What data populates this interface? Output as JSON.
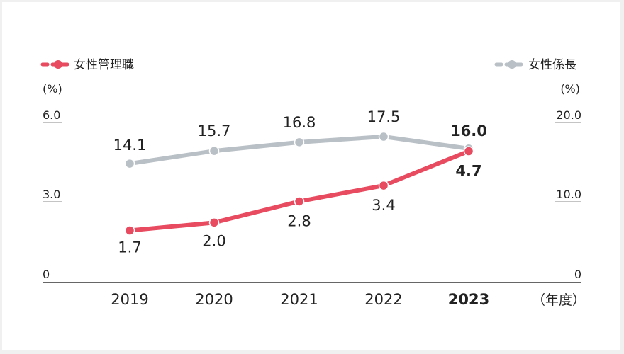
{
  "chart_data": {
    "type": "line",
    "categories": [
      "2019",
      "2020",
      "2021",
      "2022",
      "2023"
    ],
    "x_unit_label": "（年度）",
    "highlight_category": "2023",
    "left_axis": {
      "unit": "(%)",
      "ticks": [
        "6.0",
        "3.0",
        "0"
      ],
      "ylim": [
        0,
        6
      ]
    },
    "right_axis": {
      "unit": "(%)",
      "ticks": [
        "20.0",
        "10.0",
        "0"
      ],
      "ylim": [
        0,
        20
      ]
    },
    "series": [
      {
        "name": "女性管理職",
        "axis": "left",
        "color": "#e84a5f",
        "values": [
          1.7,
          2.0,
          2.8,
          3.4,
          4.7
        ],
        "labels": [
          "1.7",
          "2.0",
          "2.8",
          "3.4",
          "4.7"
        ]
      },
      {
        "name": "女性係長",
        "axis": "right",
        "color": "#b9c0c6",
        "values": [
          14.1,
          15.7,
          16.8,
          17.5,
          16.0
        ],
        "labels": [
          "14.1",
          "15.7",
          "16.8",
          "17.5",
          "16.0"
        ]
      }
    ],
    "grid": false,
    "legend_position": "top"
  }
}
